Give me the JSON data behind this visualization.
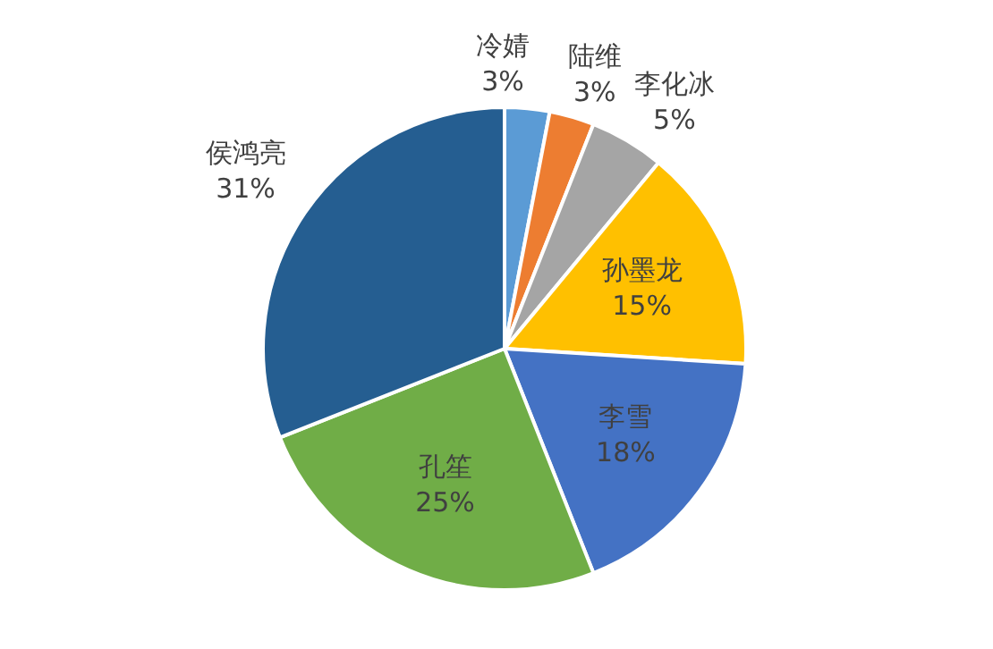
{
  "chart_data": {
    "type": "pie",
    "categories": [
      "冷婧",
      "陆维",
      "李化冰",
      "孙墨龙",
      "李雪",
      "孔笙",
      "侯鸿亮"
    ],
    "values": [
      3,
      3,
      5,
      15,
      18,
      25,
      31
    ],
    "value_labels": [
      "3%",
      "3%",
      "5%",
      "15%",
      "18%",
      "25%",
      "31%"
    ],
    "colors": [
      "#5b9bd5",
      "#ed7d31",
      "#a5a5a5",
      "#ffc000",
      "#4472c4",
      "#70ad47",
      "#255e91"
    ],
    "legend": false
  }
}
